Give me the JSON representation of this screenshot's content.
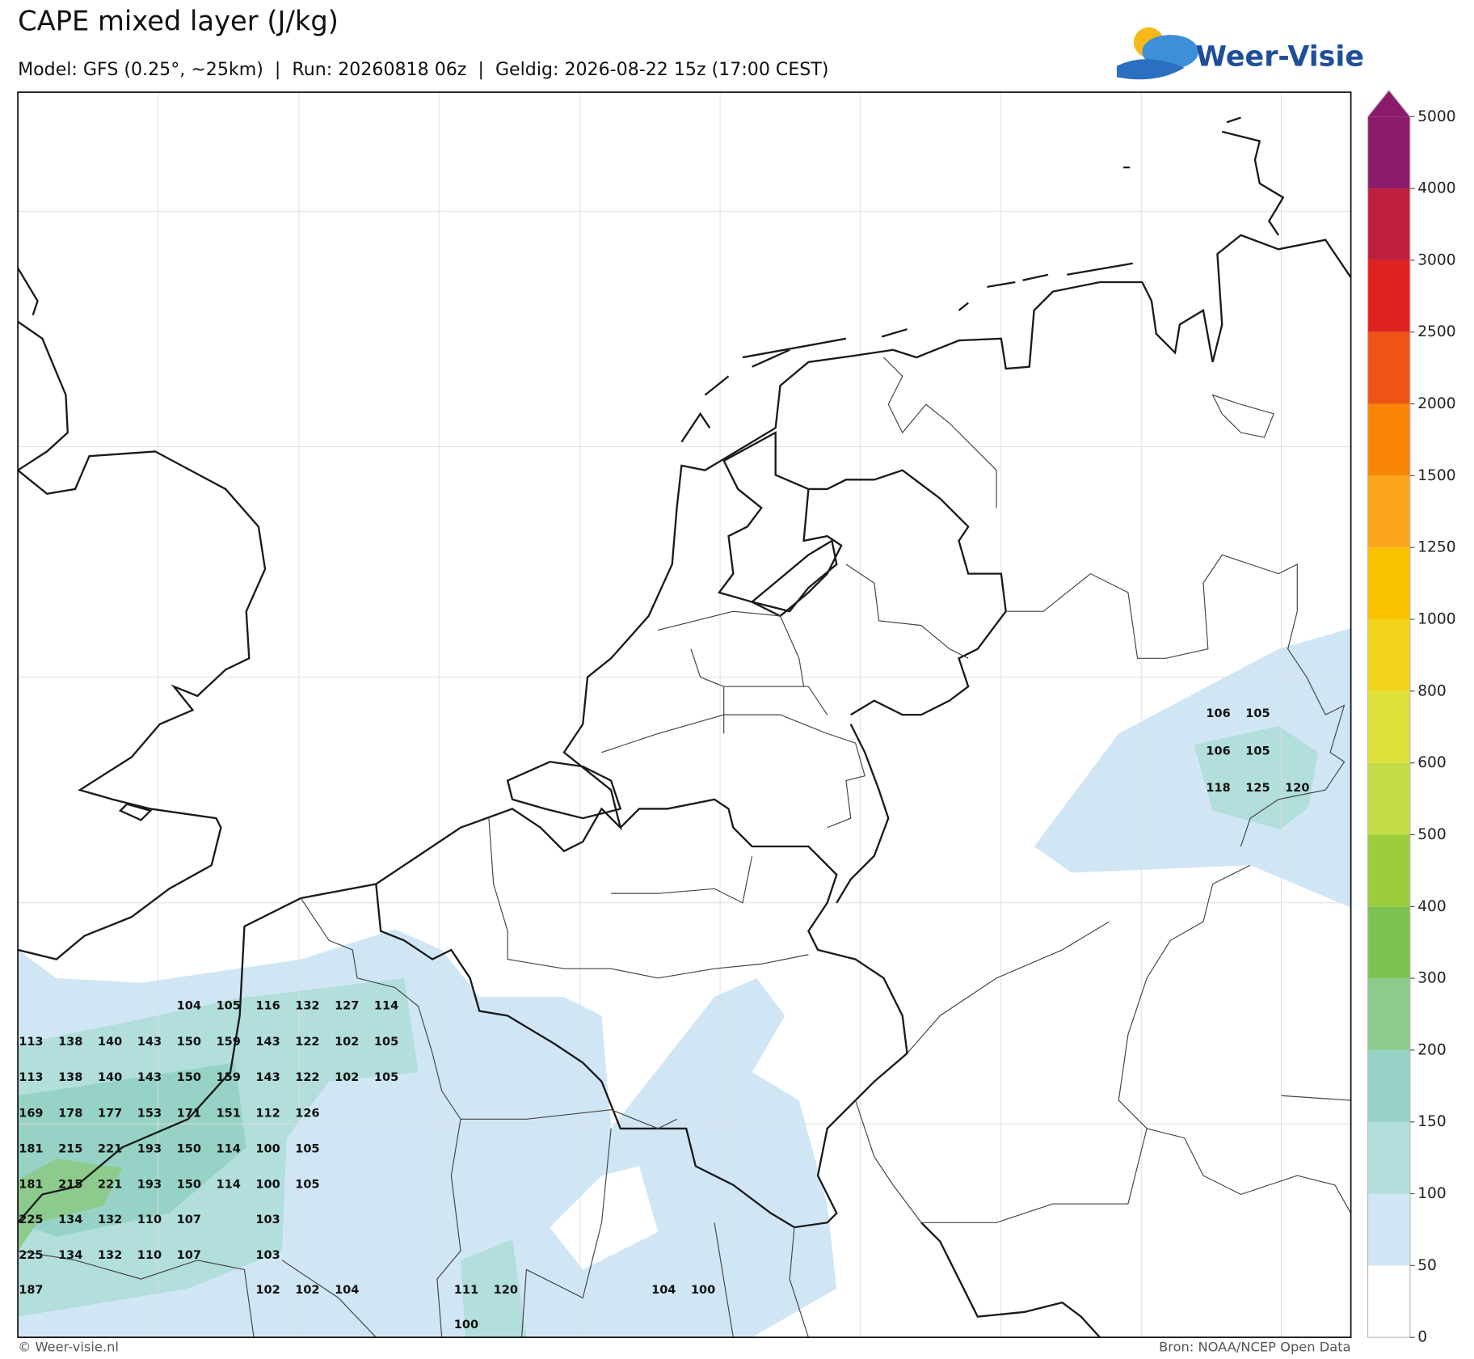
{
  "header": {
    "title": "CAPE mixed layer (J/kg)",
    "subtitle": "Model: GFS (0.25°, ~25km)  |  Run: 20260818 06z  |  Geldig: 2026-08-22 15z (17:00 CEST)",
    "logo": "Weer-Visie"
  },
  "colorbar": {
    "levels": [
      0,
      50,
      100,
      150,
      200,
      300,
      400,
      500,
      600,
      800,
      1000,
      1250,
      1500,
      2000,
      2500,
      3000,
      4000,
      5000
    ],
    "colors": [
      "#ffffff",
      "#d0e6f5",
      "#b2dedb",
      "#96d3c6",
      "#8dcb8d",
      "#7dc250",
      "#9ccd3d",
      "#c3dc48",
      "#dfe03a",
      "#f2d41a",
      "#fac300",
      "#fba51a",
      "#f98508",
      "#ee5514",
      "#e0221e",
      "#bf1f3c",
      "#8c1a6a"
    ],
    "extend_color": "#8c1a6a"
  },
  "point_values": [
    104,
    105,
    116,
    132,
    127,
    114,
    113,
    138,
    140,
    143,
    150,
    159,
    143,
    122,
    102,
    105,
    113,
    138,
    140,
    143,
    150,
    159,
    143,
    122,
    102,
    105,
    169,
    178,
    177,
    153,
    171,
    151,
    112,
    126,
    181,
    215,
    221,
    193,
    150,
    114,
    100,
    105,
    181,
    215,
    221,
    193,
    150,
    114,
    100,
    105,
    225,
    134,
    132,
    110,
    107,
    103,
    225,
    134,
    132,
    110,
    107,
    103,
    187,
    102,
    102,
    104,
    111,
    120,
    104,
    100,
    100,
    106,
    105,
    106,
    105,
    118,
    125,
    120
  ],
  "footer": {
    "left": "© Weer-visie.nl",
    "right": "Bron: NOAA/NCEP Open Data"
  }
}
